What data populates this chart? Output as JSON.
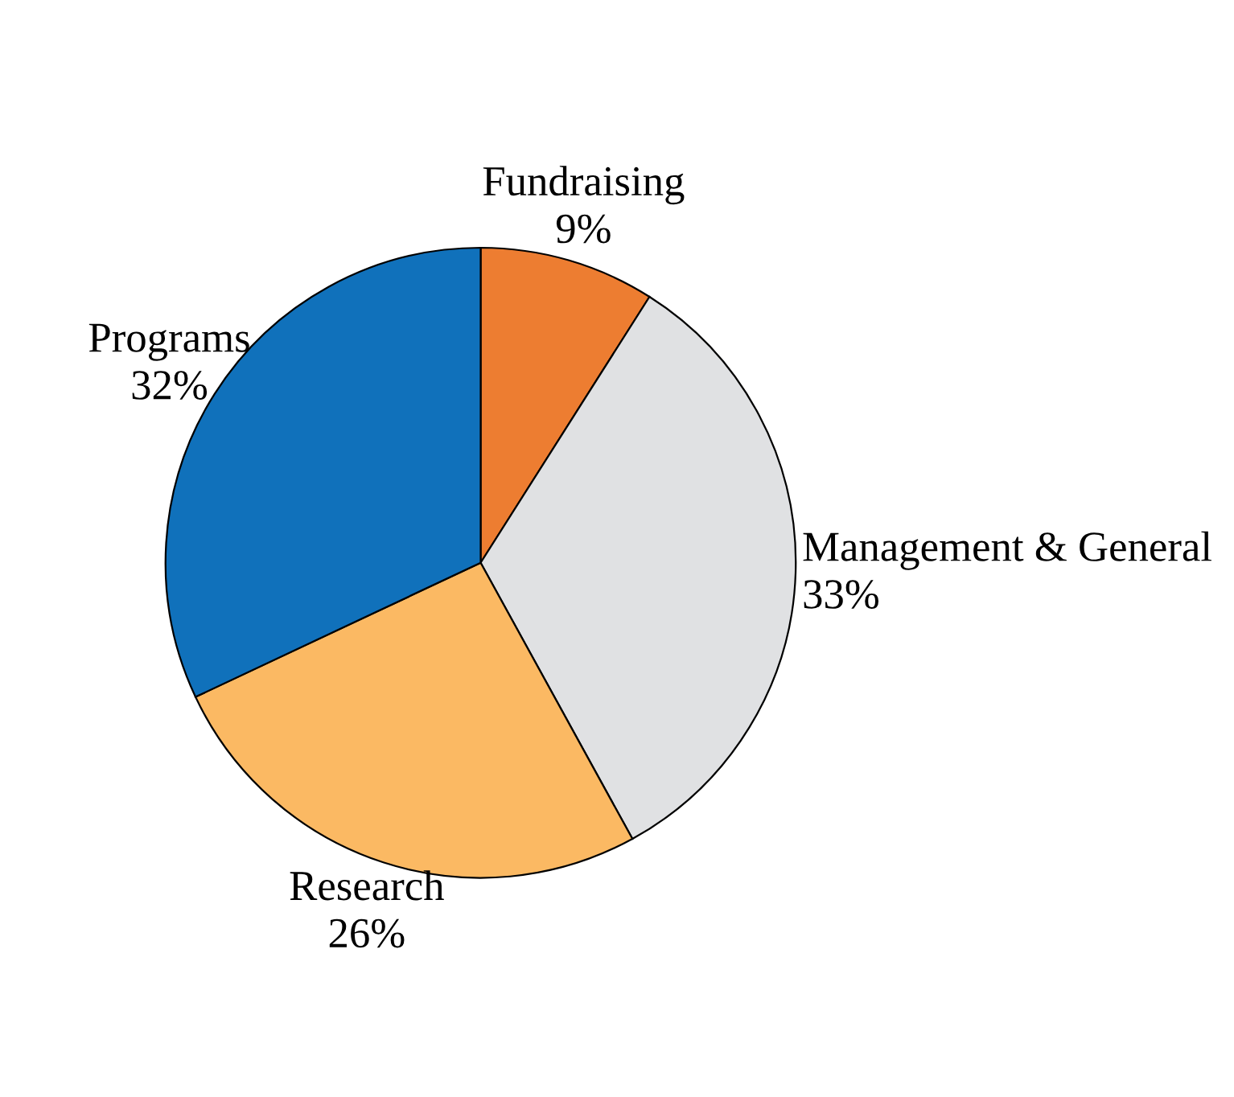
{
  "chart_data": {
    "type": "pie",
    "categories": [
      "Fundraising",
      "Management & General",
      "Research",
      "Programs"
    ],
    "values": [
      9,
      33,
      26,
      32
    ],
    "value_labels": [
      "9%",
      "33%",
      "26%",
      "32%"
    ],
    "colors": [
      "#ed7d31",
      "#e0e1e3",
      "#fbb963",
      "#1071bb"
    ]
  }
}
